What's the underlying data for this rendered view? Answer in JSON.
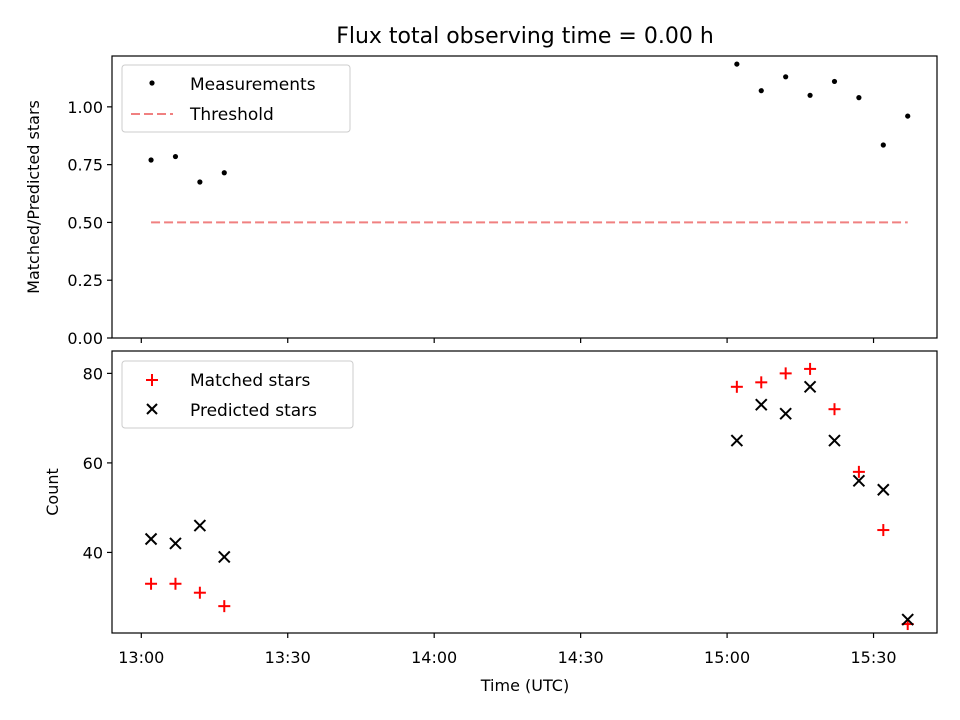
{
  "figure": {
    "title": "Flux total observing time = 0.00 h",
    "xlabel": "Time (UTC)"
  },
  "chart_data": [
    {
      "type": "scatter",
      "ylabel": "Matched/Predicted stars",
      "ylim": [
        0,
        1.22
      ],
      "yticks": [
        "0.00",
        "0.25",
        "0.50",
        "0.75",
        "1.00"
      ],
      "ytick_values": [
        0,
        0.25,
        0.5,
        0.75,
        1.0
      ],
      "xlim": [
        "12:54",
        "15:43"
      ],
      "xticks": [
        "13:00",
        "13:30",
        "14:00",
        "14:30",
        "15:00",
        "15:30"
      ],
      "legend_position": "top-left",
      "series": [
        {
          "name": "Measurements",
          "marker": "dot",
          "color": "#000000",
          "x": [
            "13:02",
            "13:07",
            "13:12",
            "13:17",
            "15:02",
            "15:07",
            "15:12",
            "15:17",
            "15:22",
            "15:27",
            "15:32",
            "15:37"
          ],
          "y": [
            0.77,
            0.785,
            0.675,
            0.715,
            1.185,
            1.07,
            1.13,
            1.05,
            1.11,
            1.04,
            0.835,
            0.96
          ]
        },
        {
          "name": "Threshold",
          "style": "dashed-line",
          "color": "#f08080",
          "x": [
            "13:02",
            "15:37"
          ],
          "y": [
            0.5,
            0.5
          ]
        }
      ]
    },
    {
      "type": "scatter",
      "ylabel": "Count",
      "ylim": [
        22,
        85
      ],
      "yticks": [
        "40",
        "60",
        "80"
      ],
      "ytick_values": [
        40,
        60,
        80
      ],
      "xlim": [
        "12:54",
        "15:43"
      ],
      "xticks": [
        "13:00",
        "13:30",
        "14:00",
        "14:30",
        "15:00",
        "15:30"
      ],
      "legend_position": "top-left",
      "series": [
        {
          "name": "Matched stars",
          "marker": "plus",
          "color": "#ff0000",
          "x": [
            "13:02",
            "13:07",
            "13:12",
            "13:17",
            "15:02",
            "15:07",
            "15:12",
            "15:17",
            "15:22",
            "15:27",
            "15:32",
            "15:37"
          ],
          "y": [
            33,
            33,
            31,
            28,
            77,
            78,
            80,
            81,
            72,
            58,
            45,
            24
          ]
        },
        {
          "name": "Predicted stars",
          "marker": "x",
          "color": "#000000",
          "x": [
            "13:02",
            "13:07",
            "13:12",
            "13:17",
            "15:02",
            "15:07",
            "15:12",
            "15:17",
            "15:22",
            "15:27",
            "15:32",
            "15:37"
          ],
          "y": [
            43,
            42,
            46,
            39,
            65,
            73,
            71,
            77,
            65,
            56,
            54,
            25
          ]
        }
      ]
    }
  ]
}
